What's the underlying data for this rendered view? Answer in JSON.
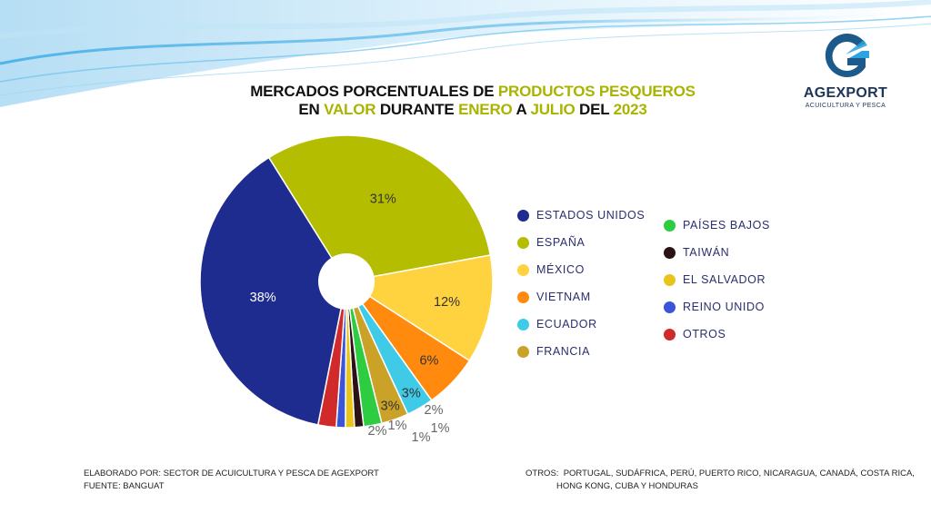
{
  "title": {
    "line1": [
      {
        "text": "MERCADOS PORCENTUALES DE ",
        "hl": false
      },
      {
        "text": "PRODUCTOS PESQUEROS",
        "hl": true
      }
    ],
    "line2": [
      {
        "text": "EN ",
        "hl": false
      },
      {
        "text": "VALOR",
        "hl": true
      },
      {
        "text": " DURANTE ",
        "hl": false
      },
      {
        "text": "ENERO",
        "hl": true
      },
      {
        "text": " A ",
        "hl": false
      },
      {
        "text": "JULIO",
        "hl": true
      },
      {
        "text": " DEL ",
        "hl": false
      },
      {
        "text": "2023",
        "hl": true
      }
    ]
  },
  "logo": {
    "name": "AGEXPORT",
    "subtitle": "ACUICULTURA Y PESCA",
    "colors": {
      "primary": "#1d5a8c",
      "secondary": "#2aa3e0"
    }
  },
  "chart_data": {
    "type": "pie",
    "donut_hole": true,
    "categories": [
      "ESPAÑA",
      "MÉXICO",
      "VIETNAM",
      "ECUADOR",
      "FRANCIA",
      "PAÍSES BAJOS",
      "TAIWÁN",
      "EL SALVADOR",
      "REINO UNIDO",
      "OTROS",
      "ESTADOS UNIDOS"
    ],
    "values": [
      31,
      12,
      6,
      3,
      3,
      2,
      1,
      1,
      1,
      2,
      38
    ],
    "data_labels": [
      "31%",
      "12%",
      "6%",
      "3%",
      "3%",
      "2%",
      "1%",
      "1%",
      "1%",
      "2%",
      "38%"
    ],
    "colors": [
      "#b5bd00",
      "#ffd23f",
      "#ff8a0d",
      "#3fcbe8",
      "#c9a227",
      "#2ecc40",
      "#2a1215",
      "#e8c619",
      "#3b55d9",
      "#d12a2a",
      "#1f2c8f"
    ]
  },
  "legend": {
    "left": [
      {
        "label": "ESTADOS UNIDOS",
        "color": "#1f2c8f"
      },
      {
        "label": "ESPAÑA",
        "color": "#b5bd00"
      },
      {
        "label": "MÉXICO",
        "color": "#ffd23f"
      },
      {
        "label": "VIETNAM",
        "color": "#ff8a0d"
      },
      {
        "label": "ECUADOR",
        "color": "#3fcbe8"
      },
      {
        "label": "FRANCIA",
        "color": "#c9a227"
      }
    ],
    "right": [
      {
        "label": "PAÍSES BAJOS",
        "color": "#2ecc40"
      },
      {
        "label": "TAIWÁN",
        "color": "#2a1215"
      },
      {
        "label": "EL SALVADOR",
        "color": "#e8c619"
      },
      {
        "label": "REINO UNIDO",
        "color": "#3b55d9"
      },
      {
        "label": "OTROS",
        "color": "#d12a2a"
      }
    ]
  },
  "footer": {
    "elaborado": "ELABORADO POR: SECTOR DE ACUICULTURA Y PESCA DE AGEXPORT",
    "fuente": "FUENTE:  BANGUAT",
    "otros_label": "OTROS:",
    "otros_line1": "PORTUGAL, SUDÁFRICA, PERÚ, PUERTO RICO, NICARAGUA, CANADÁ, COSTA RICA,",
    "otros_line2": "HONG KONG, CUBA Y HONDURAS"
  }
}
